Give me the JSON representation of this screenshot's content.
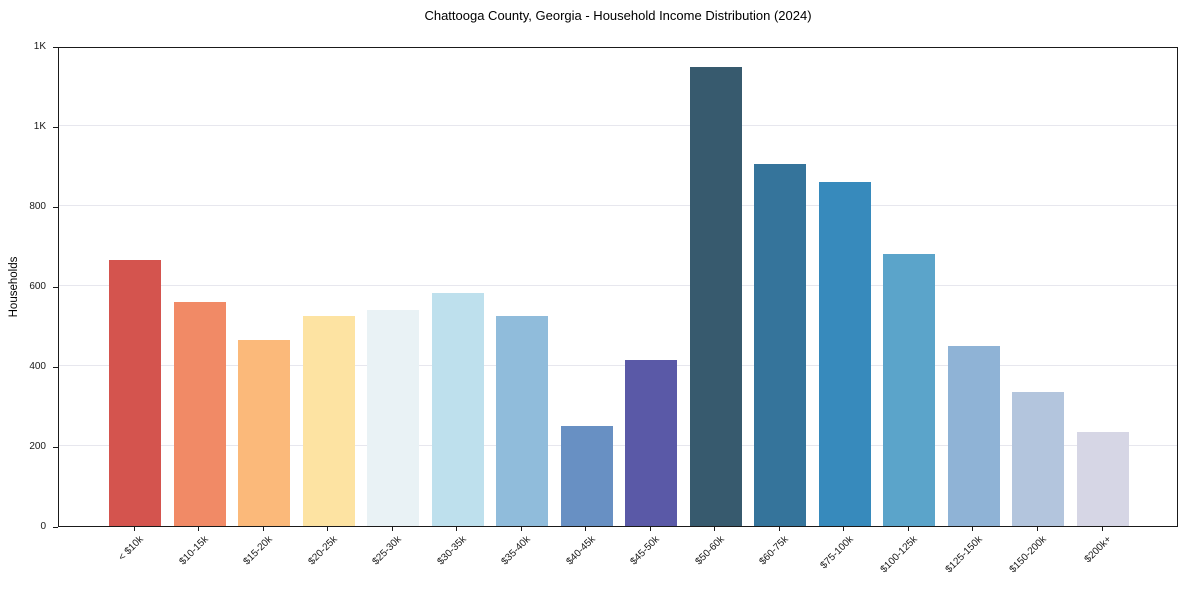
{
  "chart_data": {
    "type": "bar",
    "title": "Chattooga County, Georgia - Household Income Distribution (2024)",
    "xlabel": "",
    "ylabel": "Households",
    "ylim": [
      0,
      1200
    ],
    "grid": "horizontal",
    "legend": "none",
    "categories": [
      "< $10k",
      "$10-15k",
      "$15-20k",
      "$20-25k",
      "$25-30k",
      "$30-35k",
      "$35-40k",
      "$40-45k",
      "$45-50k",
      "$50-60k",
      "$60-75k",
      "$75-100k",
      "$100-125k",
      "$125-150k",
      "$150-200k",
      "$200k+"
    ],
    "values": [
      664,
      561,
      464,
      524,
      541,
      583,
      526,
      249,
      415,
      1147,
      904,
      859,
      680,
      449,
      335,
      234
    ],
    "bar_colors": [
      "#d4544e",
      "#f18a66",
      "#fbb97a",
      "#fde3a2",
      "#e9f2f5",
      "#bee0ed",
      "#90bcdb",
      "#6890c3",
      "#5a59a7",
      "#375a6e",
      "#35749b",
      "#378abc",
      "#5ba4ca",
      "#8fb3d6",
      "#b3c5dd",
      "#d6d6e5"
    ],
    "yticks": [
      {
        "value": 0,
        "label": "0"
      },
      {
        "value": 200,
        "label": "200"
      },
      {
        "value": 400,
        "label": "400"
      },
      {
        "value": 600,
        "label": "600"
      },
      {
        "value": 800,
        "label": "800"
      },
      {
        "value": 1000,
        "label": "1K"
      },
      {
        "value": 1200,
        "label": "1K"
      }
    ]
  }
}
